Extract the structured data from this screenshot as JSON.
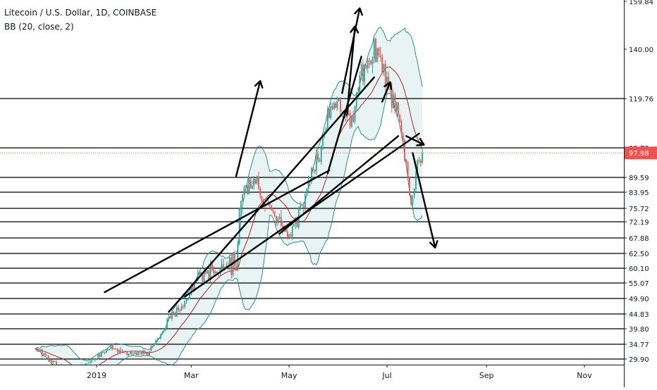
{
  "chart_data": {
    "type": "candlestick",
    "title": "Litecoin / U.S. Dollar, 1D, COINBASE",
    "indicator_label": "BB (20, close, 2)",
    "x_axis_ticks": [
      "2019",
      "Mar",
      "May",
      "Jul",
      "Sep",
      "Nov"
    ],
    "y_axis_ticks": [
      "159.84",
      "140.00",
      "119.76",
      "99.73",
      "97.98",
      "89.59",
      "83.95",
      "75.72",
      "72.19",
      "67.88",
      "62.50",
      "60.10",
      "55.07",
      "49.90",
      "44.83",
      "39.80",
      "34.77",
      "29.90"
    ],
    "last_price": "97.98",
    "horizontal_levels": [
      119.76,
      99.73,
      89.59,
      83.95,
      75.72,
      72.19,
      67.88,
      62.5,
      60.1,
      55.07,
      49.9,
      44.83,
      39.8,
      34.77,
      29.9
    ],
    "price_series": {
      "start": "2018-11-24",
      "end": "2019-07-23",
      "approx_close_path": [
        [
          "2018-11-24",
          33.5
        ],
        [
          "2018-12-03",
          30.0
        ],
        [
          "2018-12-14",
          24.5
        ],
        [
          "2018-12-22",
          27.5
        ],
        [
          "2019-01-01",
          30.5
        ],
        [
          "2019-01-10",
          33.5
        ],
        [
          "2019-01-20",
          31.5
        ],
        [
          "2019-02-01",
          31.5
        ],
        [
          "2019-02-10",
          37.5
        ],
        [
          "2019-02-15",
          43.5
        ],
        [
          "2019-02-25",
          48.0
        ],
        [
          "2019-03-05",
          57.0
        ],
        [
          "2019-03-13",
          58.5
        ],
        [
          "2019-03-20",
          59.5
        ],
        [
          "2019-03-29",
          60.5
        ],
        [
          "2019-04-02",
          84.0
        ],
        [
          "2019-04-10",
          88.0
        ],
        [
          "2019-04-15",
          78.0
        ],
        [
          "2019-04-25",
          73.5
        ],
        [
          "2019-05-01",
          68.5
        ],
        [
          "2019-05-10",
          78.5
        ],
        [
          "2019-05-15",
          90.5
        ],
        [
          "2019-05-20",
          97.5
        ],
        [
          "2019-05-25",
          113.0
        ],
        [
          "2019-06-01",
          117.0
        ],
        [
          "2019-06-10",
          112.0
        ],
        [
          "2019-06-15",
          133.0
        ],
        [
          "2019-06-20",
          137.0
        ],
        [
          "2019-06-25",
          138.0
        ],
        [
          "2019-06-30",
          129.0
        ],
        [
          "2019-07-05",
          118.0
        ],
        [
          "2019-07-10",
          108.0
        ],
        [
          "2019-07-13",
          92.0
        ],
        [
          "2019-07-16",
          78.0
        ],
        [
          "2019-07-19",
          92.0
        ],
        [
          "2019-07-23",
          97.98
        ]
      ]
    },
    "arrows": [
      {
        "from": [
          "2019-03-29",
          90.0
        ],
        "to": [
          "2019-04-13",
          127.0
        ]
      },
      {
        "from": [
          "2019-06-03",
          122.0
        ],
        "to": [
          "2019-06-14",
          157.0
        ]
      },
      {
        "from": [
          "2019-07-17",
          98.0
        ],
        "to": [
          "2019-07-31",
          64.5
        ]
      }
    ]
  }
}
